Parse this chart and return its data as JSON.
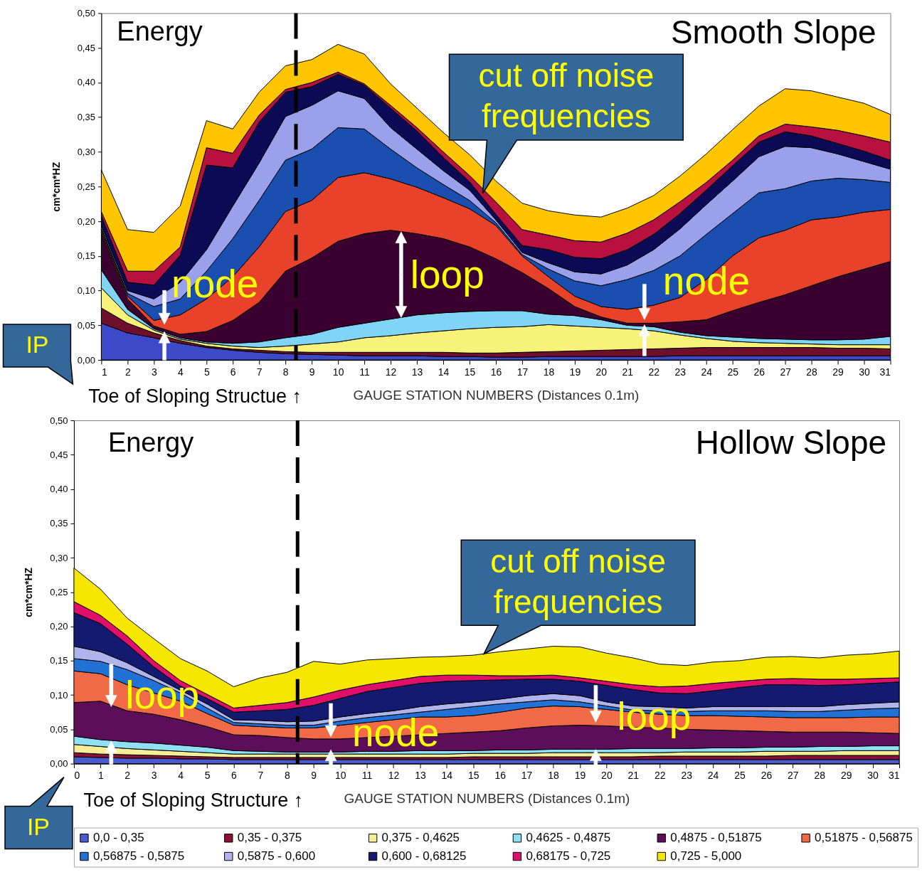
{
  "chart_data": [
    {
      "type": "area",
      "stacked": true,
      "title": "Smooth Slope",
      "xlabel": "GAUGE STATION  NUMBERS (Distances 0.1m)",
      "ylabel": "cm*cm*HZ",
      "xlim": [
        1,
        31
      ],
      "xticks": [
        1,
        2,
        3,
        4,
        5,
        6,
        7,
        8,
        9,
        10,
        11,
        12,
        13,
        14,
        15,
        16,
        17,
        18,
        19,
        20,
        21,
        22,
        23,
        24,
        25,
        26,
        27,
        28,
        29,
        30,
        31
      ],
      "ylim": [
        0,
        0.5
      ],
      "yticks": [
        {
          "value": 0,
          "label": "0,00"
        },
        {
          "value": 0.05,
          "label": "0,05"
        },
        {
          "value": 0.1,
          "label": "0,10"
        },
        {
          "value": 0.15,
          "label": "0,15"
        },
        {
          "value": 0.2,
          "label": "0,20"
        },
        {
          "value": 0.25,
          "label": "0,25"
        },
        {
          "value": 0.3,
          "label": "0,30"
        },
        {
          "value": 0.35,
          "label": "0,35"
        },
        {
          "value": 0.4,
          "label": "0,40"
        },
        {
          "value": 0.45,
          "label": "0,45"
        },
        {
          "value": 0.5,
          "label": "0,50"
        }
      ],
      "x": [
        1,
        2,
        3,
        4,
        5,
        6,
        7,
        8,
        9,
        10,
        11,
        12,
        13,
        14,
        15,
        16,
        17,
        18,
        19,
        20,
        21,
        22,
        23,
        24,
        25,
        26,
        27,
        28,
        29,
        30,
        31
      ],
      "series": [
        {
          "color": "#3d4ac8",
          "values": [
            0.053,
            0.039,
            0.032,
            0.024,
            0.018,
            0.014,
            0.011,
            0.009,
            0.008,
            0.007,
            0.006,
            0.006,
            0.006,
            0.005,
            0.005,
            0.004,
            0.004,
            0.005,
            0.005,
            0.005,
            0.005,
            0.005,
            0.006,
            0.006,
            0.006,
            0.006,
            0.006,
            0.006,
            0.006,
            0.006,
            0.006
          ]
        },
        {
          "color": "#6e0f2c",
          "values": [
            0.022,
            0.014,
            0.007,
            0.004,
            0.002,
            0.002,
            0.003,
            0.003,
            0.003,
            0.004,
            0.005,
            0.005,
            0.005,
            0.006,
            0.005,
            0.006,
            0.007,
            0.007,
            0.008,
            0.009,
            0.01,
            0.011,
            0.011,
            0.012,
            0.012,
            0.012,
            0.012,
            0.012,
            0.011,
            0.011,
            0.01
          ]
        },
        {
          "color": "#f8f27a",
          "values": [
            0.029,
            0.012,
            0.004,
            0.002,
            0.004,
            0.004,
            0.004,
            0.008,
            0.012,
            0.015,
            0.021,
            0.024,
            0.028,
            0.031,
            0.035,
            0.037,
            0.037,
            0.039,
            0.036,
            0.033,
            0.03,
            0.026,
            0.019,
            0.013,
            0.009,
            0.007,
            0.006,
            0.005,
            0.005,
            0.005,
            0.006
          ]
        },
        {
          "color": "#80d4f6",
          "values": [
            0.026,
            0.008,
            0.002,
            0.002,
            0.002,
            0.004,
            0.008,
            0.012,
            0.014,
            0.021,
            0.021,
            0.024,
            0.026,
            0.026,
            0.025,
            0.024,
            0.023,
            0.015,
            0.015,
            0.011,
            0.005,
            0.006,
            0.004,
            0.004,
            0.006,
            0.006,
            0.006,
            0.006,
            0.007,
            0.008,
            0.012
          ]
        },
        {
          "color": "#3a0030",
          "values": [
            0.054,
            0.015,
            0.004,
            0.005,
            0.015,
            0.033,
            0.057,
            0.096,
            0.11,
            0.124,
            0.129,
            0.128,
            0.117,
            0.107,
            0.093,
            0.075,
            0.055,
            0.037,
            0.013,
            0.004,
            0.003,
            0.005,
            0.015,
            0.023,
            0.038,
            0.052,
            0.064,
            0.078,
            0.091,
            0.101,
            0.108
          ]
        },
        {
          "color": "#e8432a",
          "values": [
            0.004,
            0.004,
            0.008,
            0.028,
            0.047,
            0.063,
            0.08,
            0.086,
            0.083,
            0.092,
            0.088,
            0.074,
            0.067,
            0.059,
            0.055,
            0.048,
            0.024,
            0.017,
            0.015,
            0.015,
            0.02,
            0.026,
            0.035,
            0.058,
            0.079,
            0.093,
            0.093,
            0.095,
            0.086,
            0.082,
            0.075
          ]
        },
        {
          "color": "#1a4fb0",
          "values": [
            0.002,
            0.004,
            0.02,
            0.023,
            0.04,
            0.055,
            0.067,
            0.074,
            0.074,
            0.072,
            0.063,
            0.043,
            0.028,
            0.019,
            0.012,
            0.004,
            0.002,
            0.011,
            0.022,
            0.03,
            0.043,
            0.05,
            0.06,
            0.065,
            0.061,
            0.065,
            0.06,
            0.056,
            0.056,
            0.047,
            0.039
          ]
        },
        {
          "color": "#9aa0ea",
          "values": [
            0.004,
            0.004,
            0.011,
            0.024,
            0.031,
            0.047,
            0.054,
            0.063,
            0.063,
            0.053,
            0.044,
            0.031,
            0.027,
            0.02,
            0.015,
            0.004,
            0.003,
            0.009,
            0.013,
            0.017,
            0.021,
            0.03,
            0.039,
            0.043,
            0.047,
            0.052,
            0.061,
            0.048,
            0.035,
            0.026,
            0.019
          ]
        },
        {
          "color": "#0b0b55",
          "values": [
            0.014,
            0.012,
            0.02,
            0.039,
            0.122,
            0.055,
            0.059,
            0.035,
            0.027,
            0.024,
            0.019,
            0.028,
            0.026,
            0.019,
            0.012,
            0.008,
            0.01,
            0.019,
            0.021,
            0.022,
            0.022,
            0.022,
            0.022,
            0.021,
            0.022,
            0.021,
            0.021,
            0.017,
            0.015,
            0.015,
            0.013
          ]
        },
        {
          "color": "#b8103f",
          "values": [
            0.006,
            0.016,
            0.02,
            0.012,
            0.025,
            0.021,
            0.01,
            0.004,
            0.006,
            0.003,
            0.002,
            0.004,
            0.005,
            0.008,
            0.009,
            0.018,
            0.023,
            0.021,
            0.024,
            0.024,
            0.024,
            0.021,
            0.017,
            0.011,
            0.008,
            0.009,
            0.011,
            0.013,
            0.019,
            0.022,
            0.026
          ]
        },
        {
          "color": "#ffc600",
          "values": [
            0.06,
            0.06,
            0.056,
            0.059,
            0.039,
            0.035,
            0.033,
            0.034,
            0.033,
            0.04,
            0.043,
            0.031,
            0.028,
            0.028,
            0.03,
            0.03,
            0.038,
            0.035,
            0.037,
            0.036,
            0.036,
            0.035,
            0.037,
            0.041,
            0.044,
            0.043,
            0.051,
            0.052,
            0.048,
            0.047,
            0.04
          ]
        }
      ],
      "ref_lines": [
        {
          "axis": "x",
          "value": 8.4,
          "label": "Toe of Sloping Structue ↑",
          "color": "#000000",
          "line_style": "dashed"
        }
      ],
      "annotations": [
        "Energy",
        {
          "text": "cut off noise frequencies",
          "x": 15.5,
          "y": 0.24
        },
        {
          "text": "node",
          "x": 3.4,
          "y": 0.044
        },
        {
          "text": "loop",
          "x": 12.4,
          "y": 0.185
        },
        {
          "text": "node",
          "x": 21.65,
          "y": 0.053
        },
        "IP"
      ]
    },
    {
      "type": "area",
      "stacked": true,
      "title": "Hollow Slope",
      "xlabel": "GAUGE STATION  NUMBERS (Distances 0.1m)",
      "ylabel": "cm*cm*HZ",
      "xlim": [
        0,
        31
      ],
      "xticks": [
        0,
        1,
        2,
        3,
        4,
        5,
        6,
        7,
        8,
        9,
        10,
        11,
        12,
        13,
        14,
        15,
        16,
        17,
        18,
        19,
        20,
        21,
        22,
        23,
        24,
        25,
        26,
        27,
        28,
        29,
        30,
        31
      ],
      "ylim": [
        0,
        0.5
      ],
      "yticks": [
        {
          "value": 0,
          "label": "0,00"
        },
        {
          "value": 0.05,
          "label": "0,05"
        },
        {
          "value": 0.1,
          "label": "0,10"
        },
        {
          "value": 0.15,
          "label": "0,15"
        },
        {
          "value": 0.2,
          "label": "0,20"
        },
        {
          "value": 0.25,
          "label": "0,25"
        },
        {
          "value": 0.3,
          "label": "0,30"
        },
        {
          "value": 0.35,
          "label": "0,35"
        },
        {
          "value": 0.4,
          "label": "0,40"
        },
        {
          "value": 0.45,
          "label": "0,45"
        },
        {
          "value": 0.5,
          "label": "0,50"
        }
      ],
      "x": [
        0,
        1,
        2,
        3,
        4,
        5,
        6,
        7,
        8,
        9,
        10,
        11,
        12,
        13,
        14,
        15,
        16,
        17,
        18,
        19,
        20,
        21,
        22,
        23,
        24,
        25,
        26,
        27,
        28,
        29,
        30,
        31
      ],
      "series": [
        {
          "name": "0,0 - 0,35",
          "color": "#4a5ad0",
          "values": [
            0.01,
            0.009,
            0.008,
            0.008,
            0.007,
            0.007,
            0.006,
            0.006,
            0.006,
            0.006,
            0.006,
            0.006,
            0.006,
            0.006,
            0.006,
            0.006,
            0.006,
            0.006,
            0.006,
            0.006,
            0.006,
            0.006,
            0.006,
            0.006,
            0.006,
            0.006,
            0.006,
            0.006,
            0.006,
            0.006,
            0.006,
            0.006
          ]
        },
        {
          "name": "0,35 - 0,375",
          "color": "#8a1238",
          "values": [
            0.006,
            0.005,
            0.005,
            0.004,
            0.004,
            0.003,
            0.003,
            0.003,
            0.003,
            0.003,
            0.003,
            0.003,
            0.003,
            0.003,
            0.003,
            0.004,
            0.004,
            0.004,
            0.004,
            0.004,
            0.004,
            0.004,
            0.005,
            0.005,
            0.005,
            0.005,
            0.005,
            0.006,
            0.006,
            0.006,
            0.006,
            0.006
          ]
        },
        {
          "name": "0,375 - 0,4625",
          "color": "#f4ee98",
          "values": [
            0.012,
            0.011,
            0.009,
            0.008,
            0.007,
            0.006,
            0.005,
            0.005,
            0.005,
            0.005,
            0.005,
            0.005,
            0.005,
            0.005,
            0.005,
            0.005,
            0.005,
            0.005,
            0.006,
            0.006,
            0.006,
            0.006,
            0.005,
            0.006,
            0.006,
            0.006,
            0.007,
            0.006,
            0.006,
            0.007,
            0.007,
            0.007
          ]
        },
        {
          "name": "0,4625 - 0,4875",
          "color": "#8ee0f2",
          "values": [
            0.012,
            0.01,
            0.01,
            0.01,
            0.009,
            0.008,
            0.005,
            0.004,
            0.003,
            0.003,
            0.003,
            0.004,
            0.004,
            0.005,
            0.005,
            0.004,
            0.005,
            0.005,
            0.005,
            0.005,
            0.005,
            0.006,
            0.006,
            0.005,
            0.006,
            0.006,
            0.006,
            0.006,
            0.007,
            0.006,
            0.007,
            0.007
          ]
        },
        {
          "name": "0,4875 - 0,51875",
          "color": "#5c0f58",
          "values": [
            0.049,
            0.056,
            0.045,
            0.042,
            0.037,
            0.03,
            0.023,
            0.023,
            0.021,
            0.019,
            0.019,
            0.02,
            0.022,
            0.023,
            0.025,
            0.027,
            0.028,
            0.032,
            0.034,
            0.035,
            0.034,
            0.031,
            0.03,
            0.028,
            0.026,
            0.025,
            0.023,
            0.022,
            0.021,
            0.021,
            0.019,
            0.018
          ]
        },
        {
          "name": "0,51875 - 0,56875",
          "color": "#f06a48",
          "values": [
            0.046,
            0.04,
            0.038,
            0.031,
            0.027,
            0.019,
            0.014,
            0.013,
            0.014,
            0.016,
            0.02,
            0.022,
            0.024,
            0.026,
            0.024,
            0.024,
            0.027,
            0.029,
            0.029,
            0.027,
            0.024,
            0.022,
            0.02,
            0.02,
            0.021,
            0.021,
            0.021,
            0.021,
            0.021,
            0.021,
            0.023,
            0.024
          ]
        },
        {
          "name": "0,56875 - 0,5875",
          "color": "#2272d6",
          "values": [
            0.018,
            0.018,
            0.022,
            0.018,
            0.012,
            0.008,
            0.004,
            0.004,
            0.004,
            0.004,
            0.006,
            0.007,
            0.007,
            0.007,
            0.011,
            0.013,
            0.012,
            0.009,
            0.009,
            0.007,
            0.005,
            0.003,
            0.005,
            0.006,
            0.007,
            0.008,
            0.009,
            0.009,
            0.009,
            0.011,
            0.012,
            0.013
          ]
        },
        {
          "name": "0,5875 - 0,600",
          "color": "#b0b4ec",
          "values": [
            0.018,
            0.014,
            0.01,
            0.006,
            0.004,
            0.006,
            0.004,
            0.005,
            0.005,
            0.006,
            0.006,
            0.006,
            0.006,
            0.008,
            0.008,
            0.007,
            0.007,
            0.009,
            0.009,
            0.009,
            0.006,
            0.006,
            0.006,
            0.005,
            0.006,
            0.006,
            0.006,
            0.007,
            0.007,
            0.008,
            0.008,
            0.009
          ]
        },
        {
          "name": "0,600 - 0,68125",
          "color": "#141a70",
          "values": [
            0.049,
            0.041,
            0.027,
            0.014,
            0.006,
            0.008,
            0.011,
            0.014,
            0.018,
            0.023,
            0.027,
            0.032,
            0.034,
            0.034,
            0.033,
            0.031,
            0.028,
            0.024,
            0.021,
            0.021,
            0.024,
            0.024,
            0.02,
            0.021,
            0.023,
            0.028,
            0.032,
            0.032,
            0.031,
            0.029,
            0.029,
            0.029
          ]
        },
        {
          "name": "0,68175 - 0,725",
          "color": "#e0106a",
          "values": [
            0.016,
            0.012,
            0.012,
            0.009,
            0.008,
            0.006,
            0.006,
            0.008,
            0.01,
            0.012,
            0.012,
            0.01,
            0.01,
            0.01,
            0.009,
            0.008,
            0.006,
            0.005,
            0.006,
            0.005,
            0.006,
            0.007,
            0.009,
            0.011,
            0.011,
            0.009,
            0.008,
            0.009,
            0.009,
            0.008,
            0.007,
            0.006
          ]
        },
        {
          "name": "0,725 - 5,000",
          "color": "#f7e600",
          "values": [
            0.049,
            0.038,
            0.026,
            0.032,
            0.032,
            0.034,
            0.031,
            0.04,
            0.044,
            0.052,
            0.038,
            0.036,
            0.032,
            0.028,
            0.027,
            0.029,
            0.035,
            0.039,
            0.042,
            0.045,
            0.041,
            0.039,
            0.033,
            0.03,
            0.031,
            0.03,
            0.032,
            0.032,
            0.031,
            0.035,
            0.036,
            0.039
          ]
        }
      ],
      "legend": "bottom",
      "ref_lines": [
        {
          "axis": "x",
          "value": 8.4,
          "label": "Toe of Sloping Structure ↑",
          "color": "#000000",
          "line_style": "dashed"
        }
      ],
      "annotations": [
        "Energy",
        {
          "text": "cut off noise frequencies",
          "x": 15.4,
          "y": 0.16
        },
        {
          "text": "loop",
          "x": 1.4,
          "y": 0.085
        },
        {
          "text": "node",
          "x": 9.65,
          "y": 0.036
        },
        {
          "text": "loop",
          "x": 19.6,
          "y": 0.055
        },
        "IP"
      ]
    }
  ]
}
